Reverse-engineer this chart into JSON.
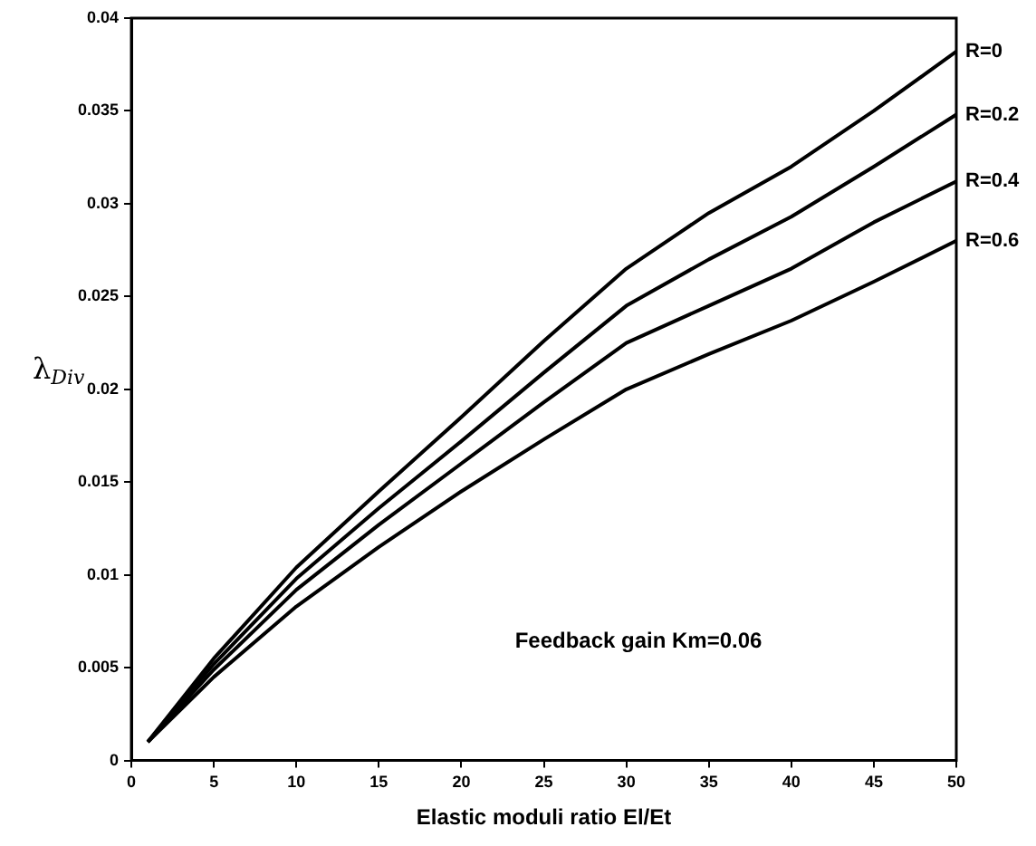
{
  "chart_data": {
    "type": "line",
    "xlabel": "Elastic moduli ratio El/Et",
    "ylabel": "λ$_{Div}$",
    "x": [
      1,
      5,
      10,
      15,
      20,
      25,
      30,
      35,
      40,
      45,
      50
    ],
    "series": [
      {
        "name": "R=0",
        "color": "#000000",
        "values": [
          0.001,
          0.0055,
          0.0104,
          0.0145,
          0.0185,
          0.0226,
          0.0265,
          0.0295,
          0.032,
          0.035,
          0.0382
        ]
      },
      {
        "name": "R=0.2",
        "color": "#000000",
        "values": [
          0.001,
          0.0052,
          0.0098,
          0.0136,
          0.0172,
          0.0209,
          0.0245,
          0.027,
          0.0293,
          0.032,
          0.0348
        ]
      },
      {
        "name": "R=0.4",
        "color": "#000000",
        "values": [
          0.001,
          0.0049,
          0.0092,
          0.0127,
          0.016,
          0.0193,
          0.0225,
          0.0245,
          0.0265,
          0.029,
          0.0312
        ]
      },
      {
        "name": "R=0.6",
        "color": "#000000",
        "values": [
          0.001,
          0.0045,
          0.0083,
          0.0115,
          0.0145,
          0.0173,
          0.02,
          0.0219,
          0.0237,
          0.0258,
          0.028
        ]
      }
    ],
    "xlim": [
      0,
      50
    ],
    "xticks": [
      0,
      5,
      10,
      15,
      20,
      25,
      30,
      35,
      40,
      45,
      50
    ],
    "ylim": [
      0,
      0.04
    ],
    "yticks": [
      0,
      0.005,
      0.01,
      0.015,
      0.02,
      0.025,
      0.03,
      0.035,
      0.04
    ],
    "annotations": [
      "Feedback gain Km=0.06"
    ],
    "grid": false,
    "legend": false,
    "marker": "none",
    "line_style": "solid"
  }
}
